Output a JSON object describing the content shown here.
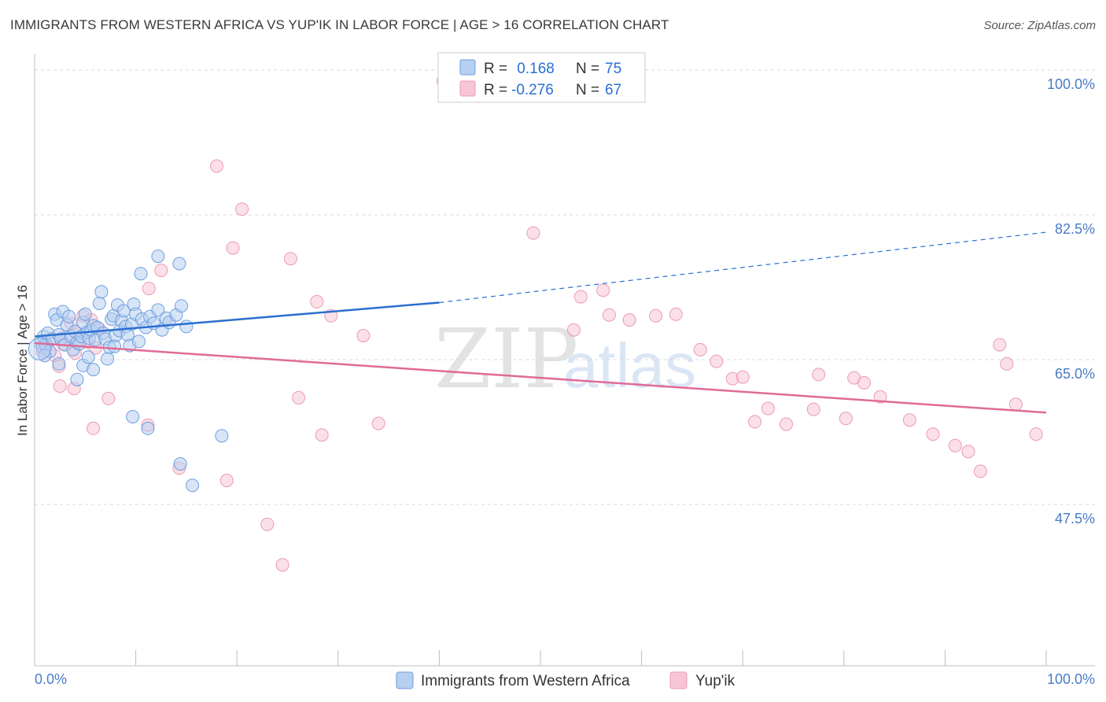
{
  "header": {
    "title": "IMMIGRANTS FROM WESTERN AFRICA VS YUP'IK IN LABOR FORCE | AGE > 16 CORRELATION CHART",
    "source": "Source: ZipAtlas.com"
  },
  "watermark": {
    "zip": "ZIP",
    "atlas": "atlas"
  },
  "colors": {
    "blue": "#6f9fe0",
    "blue_fill": "#b7cff1",
    "blue_line": "#2a6fd1",
    "pink": "#ec9ab5",
    "pink_fill": "#f7c6d6",
    "pink_line": "#e06b95",
    "axis_text": "#4a7cc7",
    "grid": "#d9d9d9"
  },
  "legend": {
    "r_label": "R =",
    "n_label": "N =",
    "entries": [
      {
        "r": " 0.168",
        "n": "75"
      },
      {
        "r": "-0.276",
        "n": "67"
      }
    ]
  },
  "chart_data": {
    "type": "scatter",
    "title": "IMMIGRANTS FROM WESTERN AFRICA VS YUP'IK IN LABOR FORCE | AGE > 16 CORRELATION CHART",
    "ylabel": "In Labor Force | Age > 16",
    "xlabel": "",
    "xlim": [
      0,
      100
    ],
    "ylim": [
      28,
      102
    ],
    "y_ticks": [
      {
        "value": 100.0,
        "label": "100.0%"
      },
      {
        "value": 82.5,
        "label": "82.5%"
      },
      {
        "value": 65.0,
        "label": "65.0%"
      },
      {
        "value": 47.5,
        "label": "47.5%"
      }
    ],
    "x_tick_labels": {
      "min": "0.0%",
      "max": "100.0%"
    },
    "grid": true,
    "legend_position": "top-center",
    "series": [
      {
        "name": "Immigrants from Western Africa",
        "r": 0.168,
        "n": 75,
        "trend": {
          "x0": 0,
          "y0": 67.8,
          "x1": 40,
          "y1": 71.9,
          "dashed_to_x": 100,
          "dashed_to_y": 80.4
        },
        "points": [
          [
            0.6,
            67.0
          ],
          [
            0.8,
            66.5
          ],
          [
            0.9,
            67.8
          ],
          [
            1.1,
            66.8
          ],
          [
            1.3,
            68.2
          ],
          [
            1.5,
            66.0
          ],
          [
            1.8,
            67.5
          ],
          [
            2.0,
            70.5
          ],
          [
            2.2,
            69.8
          ],
          [
            2.4,
            68.0
          ],
          [
            2.6,
            67.5
          ],
          [
            2.8,
            70.8
          ],
          [
            3.0,
            66.8
          ],
          [
            3.2,
            69.2
          ],
          [
            3.4,
            70.2
          ],
          [
            3.6,
            67.8
          ],
          [
            3.8,
            66.2
          ],
          [
            4.0,
            68.4
          ],
          [
            4.2,
            67.1
          ],
          [
            4.4,
            66.9
          ],
          [
            4.6,
            67.8
          ],
          [
            4.8,
            69.5
          ],
          [
            5.0,
            70.5
          ],
          [
            5.2,
            68.3
          ],
          [
            5.4,
            67.6
          ],
          [
            5.6,
            68.6
          ],
          [
            5.8,
            69.1
          ],
          [
            6.0,
            67.4
          ],
          [
            6.2,
            68.9
          ],
          [
            6.4,
            71.8
          ],
          [
            6.6,
            73.2
          ],
          [
            6.8,
            68.2
          ],
          [
            7.0,
            67.5
          ],
          [
            7.2,
            65.1
          ],
          [
            7.4,
            66.5
          ],
          [
            7.6,
            69.9
          ],
          [
            7.8,
            70.3
          ],
          [
            8.0,
            67.9
          ],
          [
            8.2,
            71.6
          ],
          [
            8.4,
            68.5
          ],
          [
            8.6,
            69.7
          ],
          [
            8.8,
            70.9
          ],
          [
            9.0,
            69.0
          ],
          [
            9.2,
            68.0
          ],
          [
            9.4,
            66.7
          ],
          [
            9.6,
            69.3
          ],
          [
            9.8,
            71.7
          ],
          [
            10.0,
            70.5
          ],
          [
            10.3,
            67.2
          ],
          [
            10.6,
            69.9
          ],
          [
            11.0,
            68.9
          ],
          [
            11.4,
            70.2
          ],
          [
            11.8,
            69.4
          ],
          [
            12.2,
            71.0
          ],
          [
            12.6,
            68.6
          ],
          [
            13.0,
            70.0
          ],
          [
            13.3,
            69.5
          ],
          [
            14.0,
            70.4
          ],
          [
            14.5,
            71.5
          ],
          [
            15.0,
            69.0
          ],
          [
            1.0,
            65.5
          ],
          [
            2.4,
            64.5
          ],
          [
            4.2,
            62.6
          ],
          [
            4.8,
            64.3
          ],
          [
            5.3,
            65.3
          ],
          [
            5.8,
            63.8
          ],
          [
            7.9,
            66.6
          ],
          [
            10.5,
            75.4
          ],
          [
            12.2,
            77.5
          ],
          [
            14.3,
            76.6
          ],
          [
            9.7,
            58.1
          ],
          [
            11.2,
            56.7
          ],
          [
            14.4,
            52.4
          ],
          [
            15.6,
            49.8
          ],
          [
            18.5,
            55.8
          ]
        ]
      },
      {
        "name": "Yup'ik",
        "r": -0.276,
        "n": 67,
        "trend": {
          "x0": 0,
          "y0": 67.0,
          "x1": 100,
          "y1": 58.6
        },
        "points": [
          [
            0.8,
            66.0
          ],
          [
            1.2,
            66.8
          ],
          [
            1.6,
            67.5
          ],
          [
            2.0,
            65.5
          ],
          [
            2.4,
            64.2
          ],
          [
            2.8,
            66.9
          ],
          [
            3.2,
            67.8
          ],
          [
            3.6,
            69.4
          ],
          [
            4.0,
            65.8
          ],
          [
            4.4,
            68.1
          ],
          [
            4.8,
            70.3
          ],
          [
            5.2,
            67.1
          ],
          [
            5.6,
            69.8
          ],
          [
            6.0,
            66.4
          ],
          [
            6.4,
            68.7
          ],
          [
            2.5,
            61.8
          ],
          [
            3.9,
            61.5
          ],
          [
            7.3,
            60.3
          ],
          [
            5.8,
            56.7
          ],
          [
            11.2,
            57.1
          ],
          [
            11.3,
            73.6
          ],
          [
            12.5,
            75.8
          ],
          [
            18.0,
            88.4
          ],
          [
            19.6,
            78.5
          ],
          [
            20.5,
            83.2
          ],
          [
            25.3,
            77.2
          ],
          [
            27.9,
            72.0
          ],
          [
            29.3,
            70.3
          ],
          [
            32.5,
            67.9
          ],
          [
            26.1,
            60.4
          ],
          [
            28.4,
            55.9
          ],
          [
            14.3,
            51.9
          ],
          [
            19.0,
            50.4
          ],
          [
            23.0,
            45.1
          ],
          [
            24.5,
            40.2
          ],
          [
            34.0,
            57.3
          ],
          [
            40.4,
            98.7
          ],
          [
            49.3,
            80.3
          ],
          [
            53.3,
            68.6
          ],
          [
            54.0,
            72.6
          ],
          [
            56.2,
            73.4
          ],
          [
            56.8,
            70.4
          ],
          [
            58.8,
            69.8
          ],
          [
            61.4,
            70.3
          ],
          [
            63.4,
            70.5
          ],
          [
            65.8,
            66.2
          ],
          [
            67.4,
            64.8
          ],
          [
            69.0,
            62.7
          ],
          [
            70.0,
            62.9
          ],
          [
            71.2,
            57.5
          ],
          [
            72.5,
            59.1
          ],
          [
            74.3,
            57.2
          ],
          [
            77.0,
            59.0
          ],
          [
            77.5,
            63.2
          ],
          [
            80.2,
            57.9
          ],
          [
            81.0,
            62.8
          ],
          [
            82.0,
            62.2
          ],
          [
            83.6,
            60.5
          ],
          [
            86.5,
            57.7
          ],
          [
            88.8,
            56.0
          ],
          [
            91.0,
            54.6
          ],
          [
            92.3,
            53.9
          ],
          [
            93.5,
            51.5
          ],
          [
            95.4,
            66.8
          ],
          [
            96.1,
            64.5
          ],
          [
            97.0,
            59.6
          ],
          [
            99.0,
            56.0
          ]
        ]
      }
    ]
  },
  "bottom_legend": {
    "items": [
      {
        "label": "Immigrants from Western Africa"
      },
      {
        "label": "Yup'ik"
      }
    ]
  }
}
